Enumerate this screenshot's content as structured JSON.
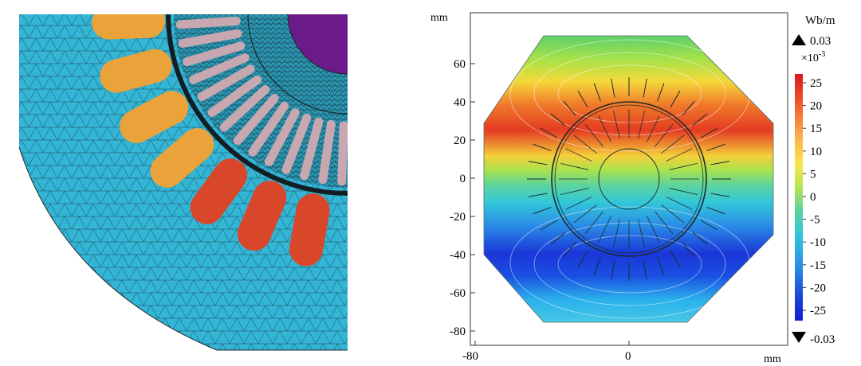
{
  "plot": {
    "unit_top": "mm",
    "unit_bottom": "mm",
    "y_ticks": [
      "60",
      "40",
      "20",
      "0",
      "-20",
      "-40",
      "-60",
      "-80"
    ],
    "x_ticks": [
      "-80",
      "0"
    ]
  },
  "colorbar": {
    "unit": "Wb/m",
    "max_label": "0.03",
    "multiplier": "×10",
    "multiplier_exp": "-3",
    "ticks": [
      "25",
      "20",
      "15",
      "10",
      "5",
      "0",
      "-5",
      "-10",
      "-15",
      "-20",
      "-25"
    ],
    "min_label": "-0.03",
    "colors": [
      "#d7191c",
      "#f46d43",
      "#fdae61",
      "#fee08b",
      "#d9ef8b",
      "#66c2a5",
      "#2bc4e0",
      "#3288bd",
      "#2255d6",
      "#0f1fcf"
    ]
  },
  "mesh": {
    "background_color": "#33b5d6",
    "slot_orange": "#eaa23a",
    "slot_red": "#d9472a",
    "rotor_bar_color": "#c8a8b0",
    "shaft_color": "#6b1a8a"
  }
}
